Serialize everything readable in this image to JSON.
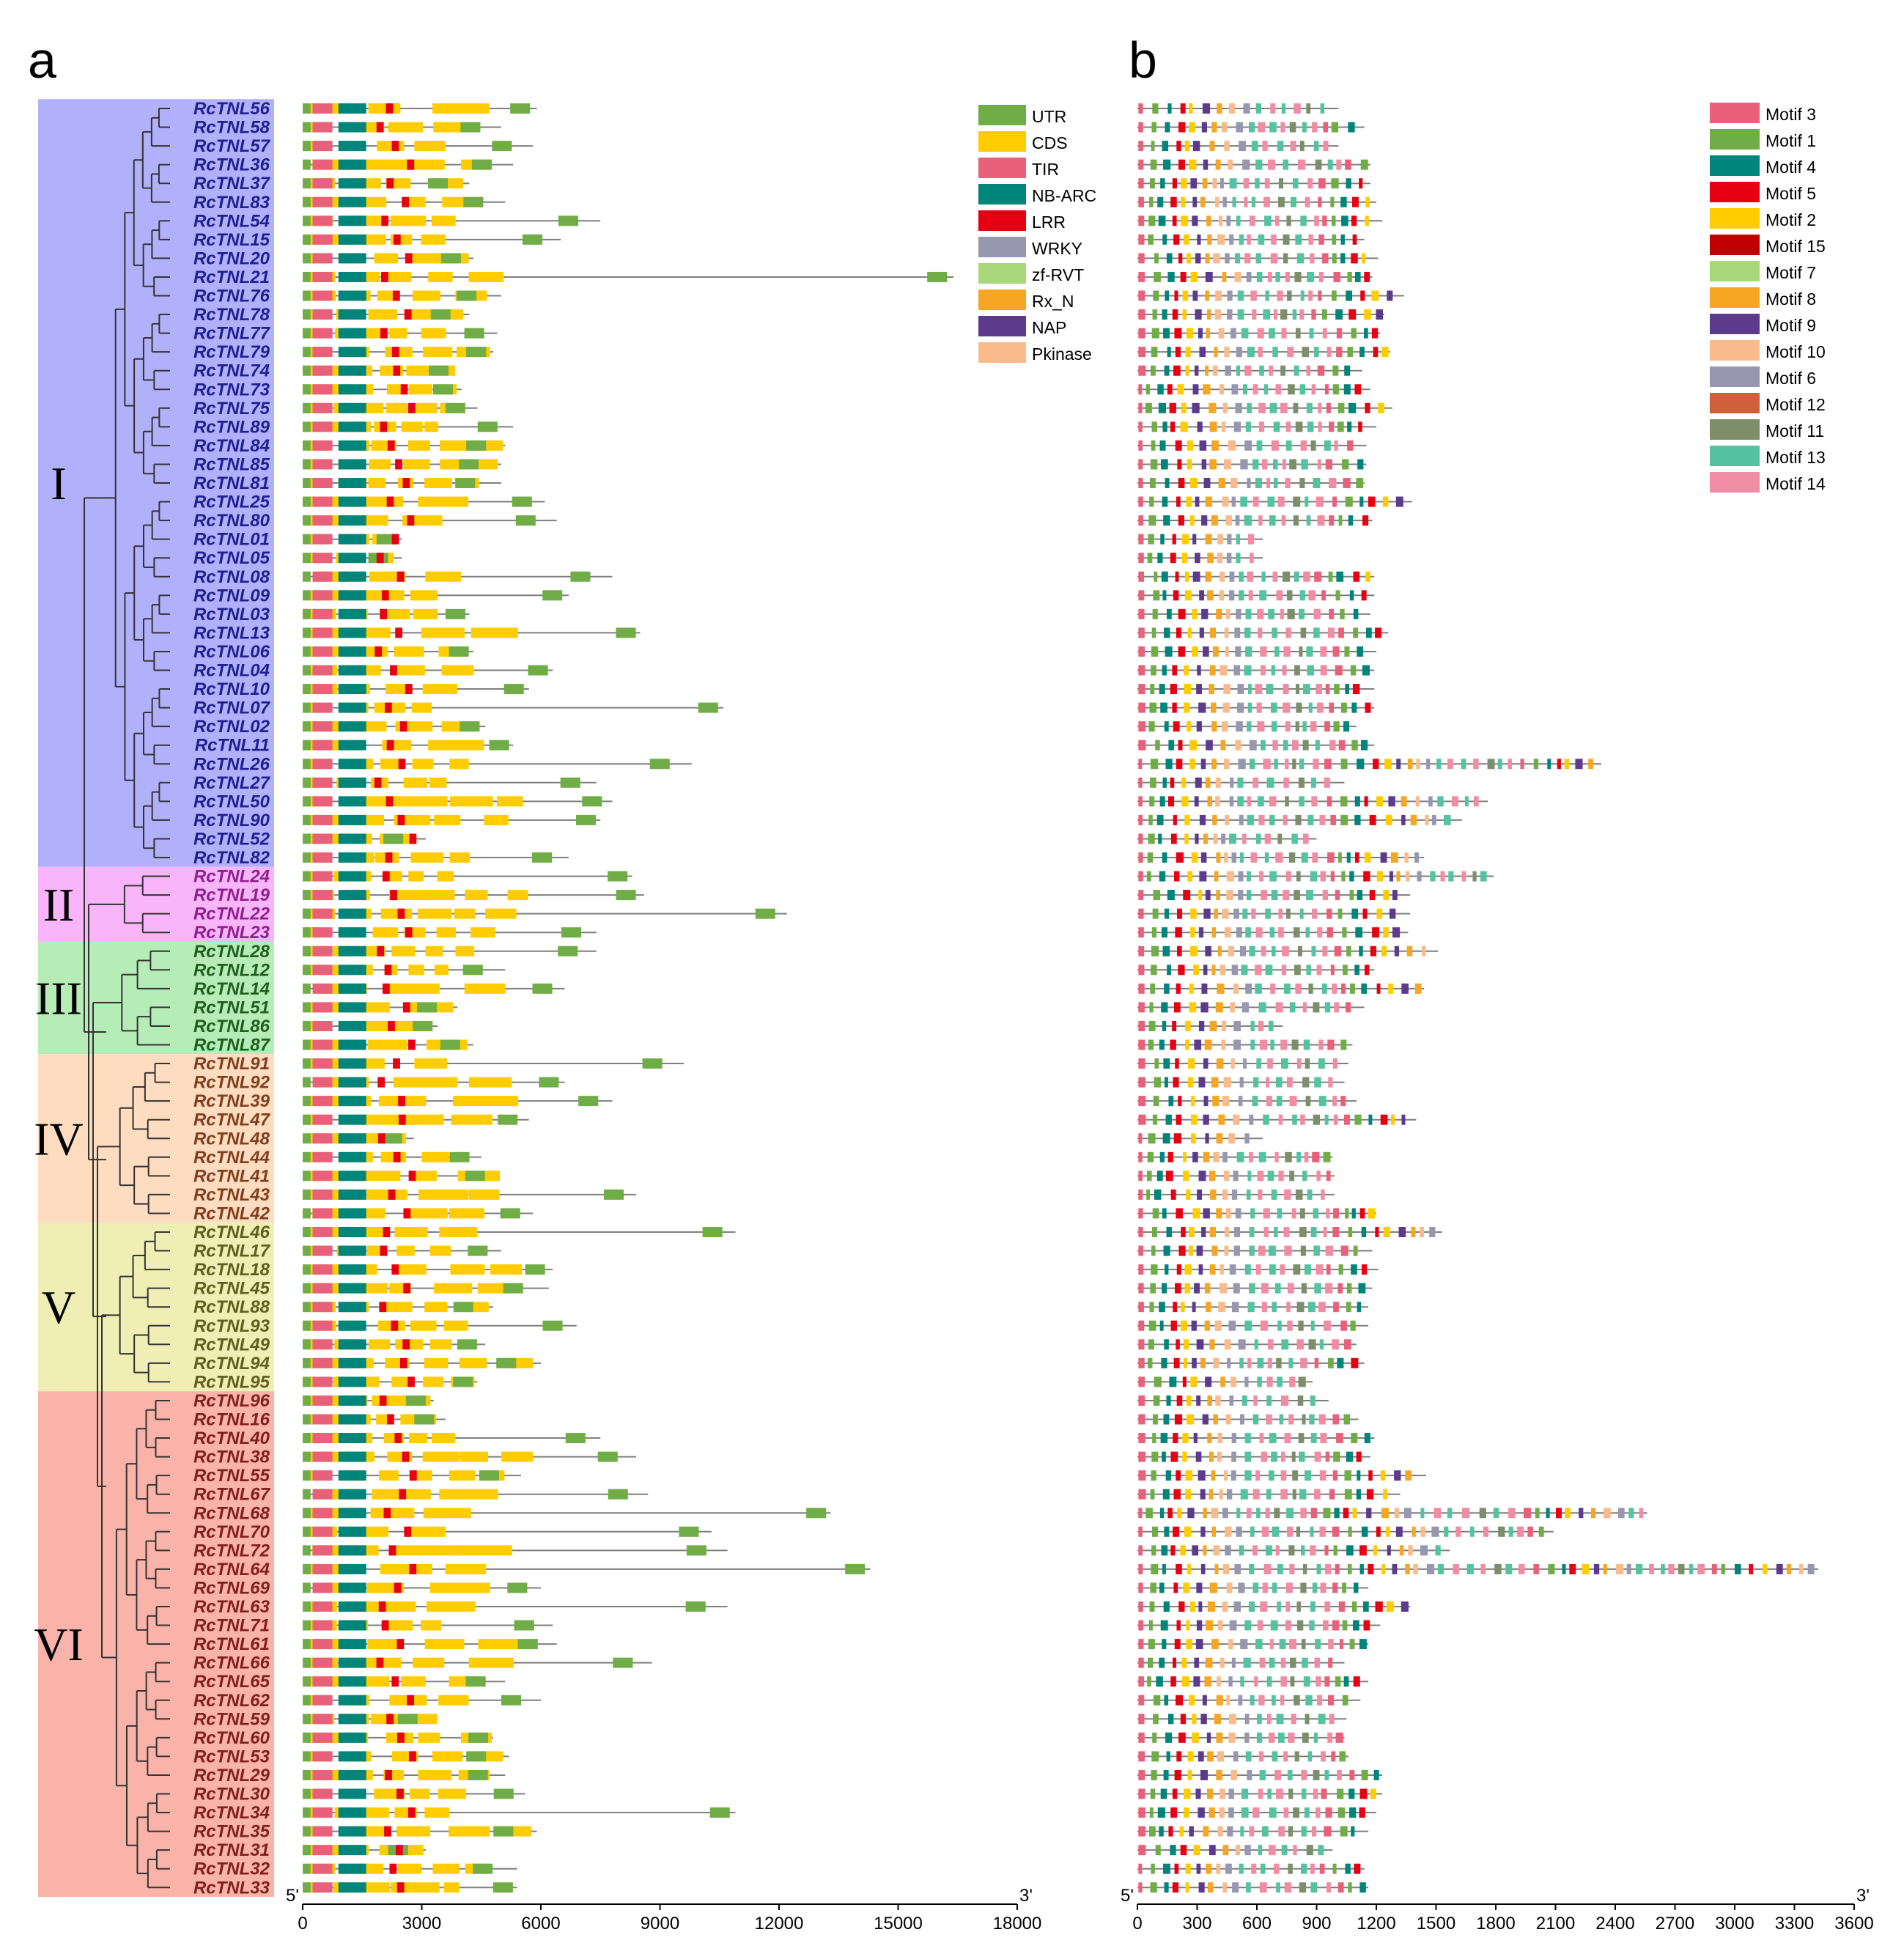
{
  "panels": {
    "a": "a",
    "b": "b"
  },
  "clades": [
    {
      "label": "I",
      "color": "#b1b1fb",
      "first": 0,
      "last": 40
    },
    {
      "label": "II",
      "color": "#f9b5f9",
      "first": 41,
      "last": 44
    },
    {
      "label": "III",
      "color": "#b6ecb6",
      "first": 45,
      "last": 50
    },
    {
      "label": "IV",
      "color": "#fddcc0",
      "first": 51,
      "last": 59
    },
    {
      "label": "V",
      "color": "#eeeeb5",
      "first": 60,
      "last": 68
    },
    {
      "label": "VI",
      "color": "#f9b3a8",
      "first": 69,
      "last": 95
    }
  ],
  "genes": [
    "RcTNL56",
    "RcTNL58",
    "RcTNL57",
    "RcTNL36",
    "RcTNL37",
    "RcTNL83",
    "RcTNL54",
    "RcTNL15",
    "RcTNL20",
    "RcTNL21",
    "RcTNL76",
    "RcTNL78",
    "RcTNL77",
    "RcTNL79",
    "RcTNL74",
    "RcTNL73",
    "RcTNL75",
    "RcTNL89",
    "RcTNL84",
    "RcTNL85",
    "RcTNL81",
    "RcTNL25",
    "RcTNL80",
    "RcTNL01",
    "RcTNL05",
    "RcTNL08",
    "RcTNL09",
    "RcTNL03",
    "RcTNL13",
    "RcTNL06",
    "RcTNL04",
    "RcTNL10",
    "RcTNL07",
    "RcTNL02",
    "RcTNL11",
    "RcTNL26",
    "RcTNL27",
    "RcTNL50",
    "RcTNL90",
    "RcTNL52",
    "RcTNL82",
    "RcTNL24",
    "RcTNL19",
    "RcTNL22",
    "RcTNL23",
    "RcTNL28",
    "RcTNL12",
    "RcTNL14",
    "RcTNL51",
    "RcTNL86",
    "RcTNL87",
    "RcTNL91",
    "RcTNL92",
    "RcTNL39",
    "RcTNL47",
    "RcTNL48",
    "RcTNL44",
    "RcTNL41",
    "RcTNL43",
    "RcTNL42",
    "RcTNL46",
    "RcTNL17",
    "RcTNL18",
    "RcTNL45",
    "RcTNL88",
    "RcTNL93",
    "RcTNL49",
    "RcTNL94",
    "RcTNL95",
    "RcTNL96",
    "RcTNL16",
    "RcTNL40",
    "RcTNL38",
    "RcTNL55",
    "RcTNL67",
    "RcTNL68",
    "RcTNL70",
    "RcTNL72",
    "RcTNL64",
    "RcTNL69",
    "RcTNL63",
    "RcTNL71",
    "RcTNL61",
    "RcTNL66",
    "RcTNL65",
    "RcTNL62",
    "RcTNL59",
    "RcTNL60",
    "RcTNL53",
    "RcTNL29",
    "RcTNL30",
    "RcTNL34",
    "RcTNL35",
    "RcTNL31",
    "RcTNL32",
    "RcTNL33"
  ],
  "gene_lengths_bp": [
    5900,
    5000,
    5800,
    5300,
    4200,
    5100,
    7500,
    6500,
    4300,
    16400,
    5000,
    4200,
    4900,
    4800,
    3800,
    4000,
    4400,
    5300,
    5100,
    5000,
    5000,
    6100,
    6400,
    2500,
    2500,
    7800,
    6700,
    4200,
    8500,
    4300,
    6300,
    5700,
    10600,
    4600,
    5300,
    9800,
    7400,
    7800,
    7500,
    3100,
    6700,
    8300,
    8600,
    12200,
    7400,
    7400,
    5100,
    6600,
    3900,
    3400,
    4300,
    9600,
    6600,
    7800,
    5700,
    2800,
    4500,
    4900,
    8400,
    5800,
    10900,
    5000,
    6300,
    6200,
    4800,
    6900,
    4600,
    6000,
    4400,
    3300,
    3600,
    7500,
    8400,
    5500,
    8700,
    13300,
    10300,
    10700,
    14300,
    6000,
    10700,
    6300,
    6400,
    8800,
    5100,
    6000,
    3400,
    4800,
    5200,
    5100,
    5600,
    10900,
    5900,
    3100,
    5400,
    5400
  ],
  "protein_lengths_aa": [
    1010,
    1140,
    1010,
    1170,
    1170,
    1200,
    1230,
    1140,
    1210,
    1180,
    1340,
    1240,
    1220,
    1270,
    1130,
    1170,
    1280,
    1200,
    1150,
    1150,
    1140,
    1380,
    1180,
    630,
    630,
    1190,
    1190,
    1170,
    1260,
    1200,
    1190,
    1190,
    1190,
    1100,
    1190,
    2330,
    1040,
    1760,
    1630,
    900,
    1440,
    1790,
    1370,
    1370,
    1360,
    1510,
    1190,
    1440,
    1140,
    730,
    1080,
    1060,
    1040,
    1100,
    1400,
    630,
    980,
    990,
    990,
    1200,
    1530,
    1180,
    1210,
    1180,
    1160,
    1160,
    1100,
    1140,
    880,
    960,
    1110,
    1190,
    1170,
    1450,
    1320,
    2560,
    2090,
    1570,
    3420,
    1160,
    1370,
    1220,
    1160,
    1040,
    1160,
    1120,
    1050,
    1040,
    1060,
    1230,
    1230,
    1200,
    1160,
    980,
    1140,
    1160
  ],
  "legend_a": {
    "items": [
      {
        "label": "UTR",
        "color": "#70ad47"
      },
      {
        "label": "CDS",
        "color": "#ffcc00"
      },
      {
        "label": "TIR",
        "color": "#e8607a"
      },
      {
        "label": "NB-ARC",
        "color": "#00857a"
      },
      {
        "label": "LRR",
        "color": "#e60012"
      },
      {
        "label": "WRKY",
        "color": "#9797b0"
      },
      {
        "label": "zf-RVT",
        "color": "#aad77a"
      },
      {
        "label": "Rx_N",
        "color": "#f5a623"
      },
      {
        "label": "NAP",
        "color": "#5c3b8c"
      },
      {
        "label": "Pkinase",
        "color": "#f9bb8c"
      }
    ]
  },
  "legend_b": {
    "items": [
      {
        "label": "Motif 3",
        "color": "#e8607a"
      },
      {
        "label": "Motif 1",
        "color": "#70ad47"
      },
      {
        "label": "Motif 4",
        "color": "#00857a"
      },
      {
        "label": "Motif 5",
        "color": "#e60012"
      },
      {
        "label": "Motif 2",
        "color": "#ffcc00"
      },
      {
        "label": "Motif 15",
        "color": "#c00000"
      },
      {
        "label": "Motif 7",
        "color": "#aad77a"
      },
      {
        "label": "Motif 8",
        "color": "#f5a623"
      },
      {
        "label": "Motif 9",
        "color": "#5c3b8c"
      },
      {
        "label": "Motif 10",
        "color": "#f9bb8c"
      },
      {
        "label": "Motif 6",
        "color": "#9797b0"
      },
      {
        "label": "Motif 12",
        "color": "#d0603c"
      },
      {
        "label": "Motif 11",
        "color": "#7d8f6a"
      },
      {
        "label": "Motif 13",
        "color": "#55c3a0"
      },
      {
        "label": "Motif 14",
        "color": "#f08ca3"
      }
    ]
  },
  "axis_a": {
    "ticks": [
      "0",
      "3000",
      "6000",
      "9000",
      "12000",
      "15000",
      "18000"
    ],
    "range": [
      0,
      18000
    ],
    "left_end": "5'",
    "right_end": "3'"
  },
  "axis_b": {
    "ticks": [
      "0",
      "300",
      "600",
      "900",
      "1200",
      "1500",
      "1800",
      "2100",
      "2400",
      "2700",
      "3000",
      "3300",
      "3600"
    ],
    "range": [
      0,
      3600
    ],
    "left_end": "5'",
    "right_end": "3'"
  },
  "colors": {
    "line": "#7f7f7f",
    "clade_I_text": "#1f1f8f",
    "clade_II_text": "#8f1f8f",
    "clade_III_text": "#1f5f1f",
    "clade_IV_text": "#7f3f1f",
    "clade_V_text": "#5f5f1f",
    "clade_VI_text": "#7f1f1f"
  }
}
